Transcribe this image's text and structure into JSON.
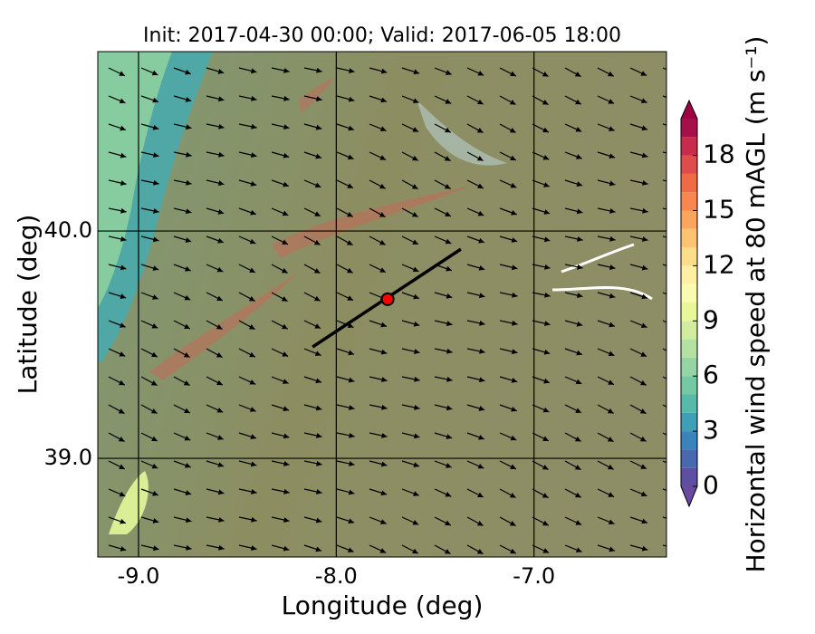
{
  "chart_data": {
    "type": "map",
    "title": "Init: 2017-04-30 00:00; Valid: 2017-06-05 18:00",
    "xlabel": "Longitude (deg)",
    "ylabel": "Latitude (deg)",
    "xlim": [
      -9.206,
      -6.33
    ],
    "ylim": [
      38.566,
      40.789
    ],
    "xticks": [
      {
        "value": -9,
        "label": "-9.0"
      },
      {
        "value": -8,
        "label": "-8.0"
      },
      {
        "value": -7,
        "label": "-7.0"
      }
    ],
    "yticks": [
      {
        "value": 39,
        "label": "39.0"
      },
      {
        "value": 40,
        "label": "40.0"
      }
    ],
    "grid": true,
    "section": {
      "lon": [
        -8.12,
        -7.37
      ],
      "lat": [
        39.49,
        39.92
      ],
      "color": "#000000"
    },
    "point": {
      "lon": -7.74,
      "lat": 39.7,
      "color": "#ff0000"
    },
    "colorbar": {
      "label": "Horizontal wind speed at 80 mAGL (m s⁻¹)",
      "levels": [
        0,
        1,
        2,
        3,
        4,
        5,
        6,
        7,
        8,
        9,
        10,
        11,
        12,
        13,
        14,
        15,
        16,
        17,
        18,
        19,
        20
      ],
      "colors": [
        "#5e4fa2",
        "#4a68ad",
        "#3a84bb",
        "#3f9fb4",
        "#57b9a9",
        "#75c8a4",
        "#95d4a4",
        "#b4e0a2",
        "#d0ec9c",
        "#e9f69a",
        "#f8fbb0",
        "#fef0a2",
        "#fedd8a",
        "#fdc372",
        "#fca55d",
        "#f7874f",
        "#ee6a44",
        "#de4c4b",
        "#c72c4a",
        "#a5104a"
      ],
      "under": "#6a4aa0",
      "over": "#9e0142",
      "ticks": [
        0,
        3,
        6,
        9,
        12,
        15,
        18
      ]
    }
  }
}
